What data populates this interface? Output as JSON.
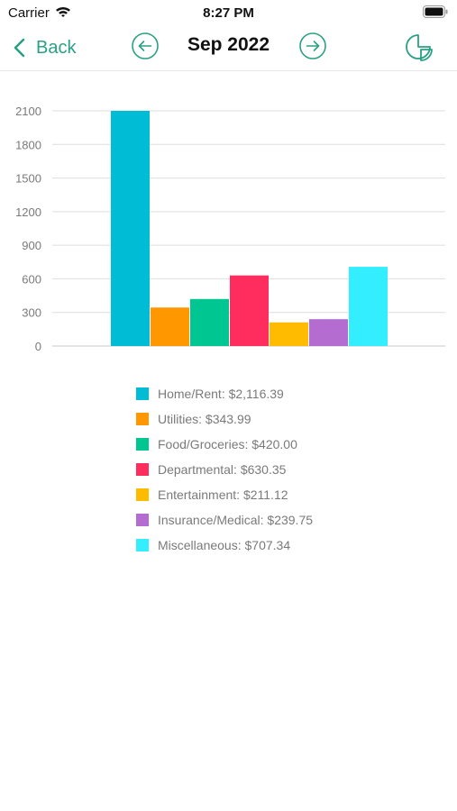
{
  "status_bar": {
    "carrier": "Carrier",
    "time": "8:27 PM"
  },
  "nav": {
    "back_label": "Back",
    "title": "Sep 2022",
    "accent_color": "#2aa084",
    "icons": {
      "back": "chevron-left-icon",
      "prev": "arrow-left-circle-icon",
      "next": "arrow-right-circle-icon",
      "chart_toggle": "pie-chart-icon"
    }
  },
  "chart_data": {
    "type": "bar",
    "title": "",
    "xlabel": "",
    "ylabel": "",
    "ylim": [
      0,
      2100
    ],
    "yticks": [
      0,
      300,
      600,
      900,
      1200,
      1500,
      1800,
      2100
    ],
    "grid": true,
    "legend_position": "bottom",
    "series": [
      {
        "name": "Home/Rent",
        "value": 2116.39,
        "color": "#00bcd4"
      },
      {
        "name": "Utilities",
        "value": 343.99,
        "color": "#ff9800"
      },
      {
        "name": "Food/Groceries",
        "value": 420.0,
        "color": "#00c791"
      },
      {
        "name": "Departmental",
        "value": 630.35,
        "color": "#ff2d5e"
      },
      {
        "name": "Entertainment",
        "value": 211.12,
        "color": "#ffbb00"
      },
      {
        "name": "Insurance/Medical",
        "value": 239.75,
        "color": "#b46cd1"
      },
      {
        "name": "Miscellaneous",
        "value": 707.34,
        "color": "#33eeff"
      }
    ]
  },
  "legend": {
    "separator": ": ",
    "items": [
      {
        "name": "Home/Rent",
        "amount": "$2,116.39",
        "color": "#00bcd4"
      },
      {
        "name": "Utilities",
        "amount": "$343.99",
        "color": "#ff9800"
      },
      {
        "name": "Food/Groceries",
        "amount": "$420.00",
        "color": "#00c791"
      },
      {
        "name": "Departmental",
        "amount": "$630.35",
        "color": "#ff2d5e"
      },
      {
        "name": "Entertainment",
        "amount": "$211.12",
        "color": "#ffbb00"
      },
      {
        "name": "Insurance/Medical",
        "amount": "$239.75",
        "color": "#b46cd1"
      },
      {
        "name": "Miscellaneous",
        "amount": "$707.34",
        "color": "#33eeff"
      }
    ]
  }
}
